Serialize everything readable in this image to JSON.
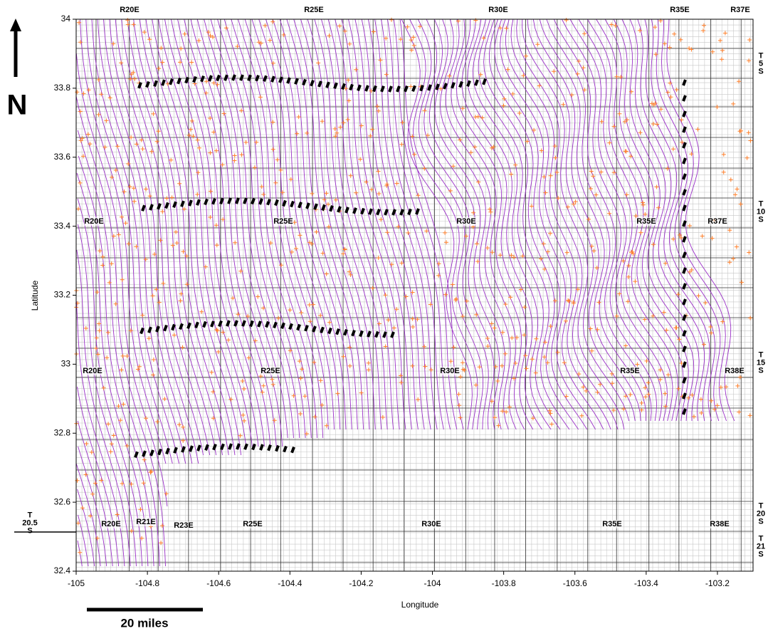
{
  "chart_data": {
    "type": "map",
    "x_label": "Longitude",
    "y_label": "Latitude",
    "xlim": [
      -105,
      -103.1
    ],
    "ylim": [
      32.4,
      34
    ],
    "xticks": [
      -105,
      -104.8,
      -104.6,
      -104.4,
      -104.2,
      -104,
      -103.8,
      -103.6,
      -103.4,
      -103.2
    ],
    "yticks": [
      32.4,
      32.6,
      32.8,
      33,
      33.2,
      33.4,
      33.6,
      33.8,
      34
    ]
  },
  "range_labels": [
    "R20E",
    "R25E",
    "R30E",
    "R35E",
    "R37E",
    "R20E",
    "R25E",
    "R30E",
    "R35E",
    "R37E",
    "R20E",
    "R25E",
    "R30E",
    "R35E",
    "R38E",
    "R20E",
    "R21E",
    "R23E",
    "R25E",
    "R30E",
    "R35E",
    "R38E"
  ],
  "township_labels": [
    "T 5 S",
    "T 10 S",
    "T 15 S",
    "T 20 S",
    "T 21 S",
    "T 20.5 S"
  ],
  "north_label": "N",
  "scale_label": "20 miles"
}
